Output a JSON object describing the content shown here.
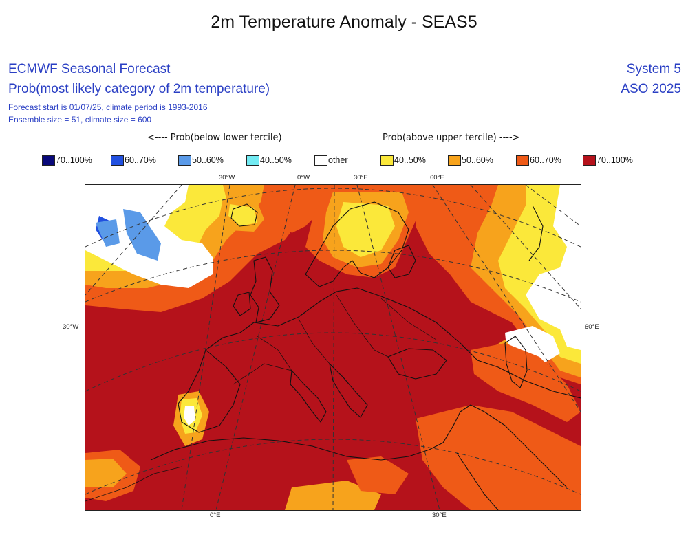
{
  "title": "2m Temperature Anomaly - SEAS5",
  "header": {
    "left": [
      "ECMWF Seasonal Forecast",
      "Prob(most likely category of 2m temperature)",
      "Forecast start is 01/07/25, climate period is 1993-2016",
      "Ensemble size = 51, climate size = 600"
    ],
    "right": [
      "System 5",
      "ASO 2025"
    ]
  },
  "legend": {
    "below_title": "<---- Prob(below lower tercile)",
    "above_title": "Prob(above upper tercile) ---->",
    "items": [
      {
        "label": "70..100%",
        "color": "#08087a"
      },
      {
        "label": "60..70%",
        "color": "#2150e0"
      },
      {
        "label": "50..60%",
        "color": "#5a9ae8"
      },
      {
        "label": "40..50%",
        "color": "#72eaf2"
      },
      {
        "label": "other",
        "color": "#ffffff"
      },
      {
        "label": "40..50%",
        "color": "#fbe83a"
      },
      {
        "label": "50..60%",
        "color": "#f7a31c"
      },
      {
        "label": "60..70%",
        "color": "#ef5a17"
      },
      {
        "label": "70..100%",
        "color": "#b5121b"
      }
    ]
  },
  "map": {
    "top_ticks": [
      "30°W",
      "0°W",
      "30°E",
      "60°E"
    ],
    "bottom_ticks": [
      "0°E",
      "30°E"
    ],
    "left_tick": "30°W",
    "right_tick": "60°E"
  }
}
